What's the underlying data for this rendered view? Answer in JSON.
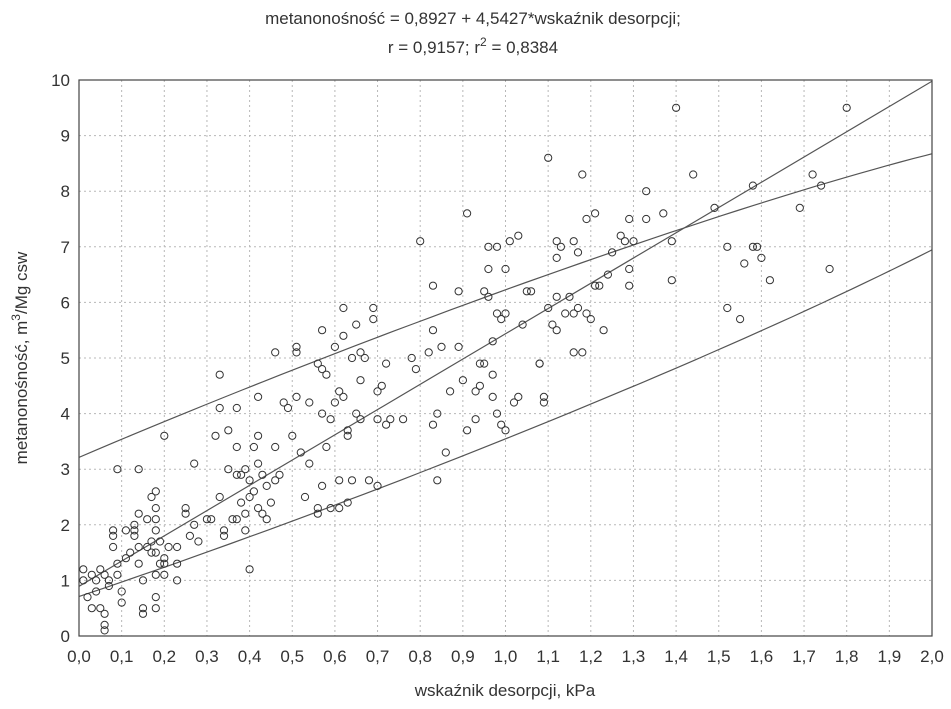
{
  "chart_data": {
    "type": "scatter",
    "title_line1": "metanonośność = 0,8927 + 4,5427*wskaźnik desorpcji;",
    "title_line2_prefix": "r = 0,9157; r",
    "title_line2_sup": "2",
    "title_line2_suffix": " = 0,8384",
    "xlabel": "wskaźnik desorpcji, kPa",
    "ylabel_prefix": "metanonośność, m",
    "ylabel_sup": "3",
    "ylabel_suffix": "/Mg csw",
    "xlim": [
      0,
      2
    ],
    "ylim": [
      0,
      10
    ],
    "x_ticks": [
      0,
      0.1,
      0.2,
      0.3,
      0.4,
      0.5,
      0.6,
      0.7,
      0.8,
      0.9,
      1.0,
      1.1,
      1.2,
      1.3,
      1.4,
      1.5,
      1.6,
      1.7,
      1.8,
      1.9,
      2.0
    ],
    "x_tick_labels": [
      "0,0",
      "0,1",
      "0,2",
      "0,3",
      "0,4",
      "0,5",
      "0,6",
      "0,7",
      "0,8",
      "0,9",
      "1,0",
      "1,1",
      "1,2",
      "1,3",
      "1,4",
      "1,5",
      "1,6",
      "1,7",
      "1,8",
      "1,9",
      "2,0"
    ],
    "y_ticks": [
      0,
      1,
      2,
      3,
      4,
      5,
      6,
      7,
      8,
      9,
      10
    ],
    "y_tick_labels": [
      "0",
      "1",
      "2",
      "3",
      "4",
      "5",
      "6",
      "7",
      "8",
      "9",
      "10"
    ],
    "grid": true,
    "regression": {
      "intercept": 0.8927,
      "slope": 4.5427
    },
    "confidence_ellipse": {
      "center": [
        0.68,
        3.95
      ],
      "angle_deg": 30.8,
      "semi_major": 1.98,
      "semi_minor": 0.235
    },
    "points": [
      [
        0.01,
        1.2
      ],
      [
        0.01,
        1.0
      ],
      [
        0.02,
        0.7
      ],
      [
        0.03,
        1.1
      ],
      [
        0.03,
        0.5
      ],
      [
        0.04,
        1.0
      ],
      [
        0.04,
        0.8
      ],
      [
        0.05,
        1.2
      ],
      [
        0.05,
        0.5
      ],
      [
        0.06,
        0.4
      ],
      [
        0.06,
        0.2
      ],
      [
        0.06,
        0.1
      ],
      [
        0.06,
        1.1
      ],
      [
        0.07,
        1.0
      ],
      [
        0.07,
        0.9
      ],
      [
        0.08,
        1.6
      ],
      [
        0.08,
        1.8
      ],
      [
        0.08,
        1.9
      ],
      [
        0.09,
        3.0
      ],
      [
        0.09,
        1.3
      ],
      [
        0.09,
        1.1
      ],
      [
        0.1,
        0.8
      ],
      [
        0.1,
        0.6
      ],
      [
        0.11,
        1.9
      ],
      [
        0.11,
        1.4
      ],
      [
        0.12,
        1.5
      ],
      [
        0.13,
        1.8
      ],
      [
        0.13,
        2.0
      ],
      [
        0.13,
        1.9
      ],
      [
        0.14,
        3.0
      ],
      [
        0.14,
        2.2
      ],
      [
        0.14,
        1.6
      ],
      [
        0.14,
        1.3
      ],
      [
        0.15,
        1.0
      ],
      [
        0.15,
        0.5
      ],
      [
        0.15,
        0.4
      ],
      [
        0.16,
        2.1
      ],
      [
        0.16,
        1.6
      ],
      [
        0.17,
        2.5
      ],
      [
        0.17,
        1.7
      ],
      [
        0.17,
        1.5
      ],
      [
        0.18,
        2.6
      ],
      [
        0.18,
        2.3
      ],
      [
        0.18,
        2.1
      ],
      [
        0.18,
        1.9
      ],
      [
        0.18,
        1.5
      ],
      [
        0.18,
        1.1
      ],
      [
        0.18,
        0.7
      ],
      [
        0.18,
        0.5
      ],
      [
        0.19,
        1.7
      ],
      [
        0.19,
        1.3
      ],
      [
        0.2,
        1.4
      ],
      [
        0.2,
        1.3
      ],
      [
        0.2,
        1.1
      ],
      [
        0.2,
        3.6
      ],
      [
        0.21,
        1.6
      ],
      [
        0.23,
        1.3
      ],
      [
        0.23,
        1.0
      ],
      [
        0.23,
        1.6
      ],
      [
        0.25,
        2.2
      ],
      [
        0.25,
        2.3
      ],
      [
        0.26,
        1.8
      ],
      [
        0.27,
        2.0
      ],
      [
        0.27,
        3.1
      ],
      [
        0.28,
        1.7
      ],
      [
        0.3,
        2.1
      ],
      [
        0.31,
        2.1
      ],
      [
        0.32,
        3.6
      ],
      [
        0.33,
        4.7
      ],
      [
        0.33,
        4.1
      ],
      [
        0.33,
        2.5
      ],
      [
        0.34,
        1.8
      ],
      [
        0.34,
        1.9
      ],
      [
        0.35,
        3.0
      ],
      [
        0.35,
        3.7
      ],
      [
        0.36,
        2.1
      ],
      [
        0.37,
        4.1
      ],
      [
        0.37,
        3.4
      ],
      [
        0.37,
        2.9
      ],
      [
        0.37,
        2.1
      ],
      [
        0.38,
        2.9
      ],
      [
        0.38,
        2.4
      ],
      [
        0.39,
        3.0
      ],
      [
        0.39,
        2.2
      ],
      [
        0.39,
        1.9
      ],
      [
        0.4,
        2.8
      ],
      [
        0.4,
        2.5
      ],
      [
        0.4,
        1.2
      ],
      [
        0.41,
        3.4
      ],
      [
        0.41,
        2.6
      ],
      [
        0.42,
        4.3
      ],
      [
        0.42,
        3.6
      ],
      [
        0.42,
        3.1
      ],
      [
        0.42,
        2.3
      ],
      [
        0.43,
        2.9
      ],
      [
        0.43,
        2.2
      ],
      [
        0.44,
        2.7
      ],
      [
        0.44,
        2.1
      ],
      [
        0.45,
        2.4
      ],
      [
        0.46,
        2.8
      ],
      [
        0.46,
        5.1
      ],
      [
        0.46,
        3.4
      ],
      [
        0.47,
        2.9
      ],
      [
        0.48,
        4.2
      ],
      [
        0.49,
        4.1
      ],
      [
        0.5,
        3.6
      ],
      [
        0.51,
        5.1
      ],
      [
        0.51,
        5.2
      ],
      [
        0.51,
        4.3
      ],
      [
        0.52,
        3.3
      ],
      [
        0.53,
        2.5
      ],
      [
        0.54,
        3.1
      ],
      [
        0.54,
        4.2
      ],
      [
        0.56,
        2.3
      ],
      [
        0.56,
        2.2
      ],
      [
        0.56,
        4.9
      ],
      [
        0.57,
        4.8
      ],
      [
        0.57,
        2.7
      ],
      [
        0.57,
        5.5
      ],
      [
        0.57,
        4.0
      ],
      [
        0.58,
        4.7
      ],
      [
        0.58,
        3.4
      ],
      [
        0.59,
        2.3
      ],
      [
        0.59,
        3.9
      ],
      [
        0.6,
        4.2
      ],
      [
        0.6,
        5.2
      ],
      [
        0.61,
        4.4
      ],
      [
        0.61,
        2.8
      ],
      [
        0.61,
        2.3
      ],
      [
        0.62,
        5.9
      ],
      [
        0.62,
        5.4
      ],
      [
        0.62,
        4.3
      ],
      [
        0.63,
        3.6
      ],
      [
        0.63,
        3.7
      ],
      [
        0.63,
        2.4
      ],
      [
        0.64,
        2.8
      ],
      [
        0.64,
        5.0
      ],
      [
        0.65,
        5.6
      ],
      [
        0.65,
        4.0
      ],
      [
        0.66,
        4.6
      ],
      [
        0.66,
        3.9
      ],
      [
        0.66,
        5.1
      ],
      [
        0.67,
        5.0
      ],
      [
        0.68,
        2.8
      ],
      [
        0.69,
        5.9
      ],
      [
        0.69,
        5.7
      ],
      [
        0.7,
        3.9
      ],
      [
        0.7,
        2.7
      ],
      [
        0.7,
        4.4
      ],
      [
        0.71,
        4.5
      ],
      [
        0.72,
        4.9
      ],
      [
        0.72,
        3.8
      ],
      [
        0.73,
        3.9
      ],
      [
        0.76,
        3.9
      ],
      [
        0.78,
        5.0
      ],
      [
        0.79,
        4.8
      ],
      [
        0.8,
        7.1
      ],
      [
        0.82,
        5.1
      ],
      [
        0.83,
        6.3
      ],
      [
        0.83,
        5.5
      ],
      [
        0.83,
        3.8
      ],
      [
        0.84,
        4.0
      ],
      [
        0.84,
        2.8
      ],
      [
        0.85,
        5.2
      ],
      [
        0.86,
        3.3
      ],
      [
        0.87,
        4.4
      ],
      [
        0.89,
        5.2
      ],
      [
        0.89,
        6.2
      ],
      [
        0.9,
        4.6
      ],
      [
        0.91,
        3.7
      ],
      [
        0.91,
        7.6
      ],
      [
        0.93,
        4.4
      ],
      [
        0.93,
        3.9
      ],
      [
        0.94,
        4.9
      ],
      [
        0.94,
        4.5
      ],
      [
        0.95,
        4.9
      ],
      [
        0.95,
        6.2
      ],
      [
        0.96,
        6.6
      ],
      [
        0.96,
        6.1
      ],
      [
        0.96,
        7.0
      ],
      [
        0.97,
        5.3
      ],
      [
        0.97,
        4.3
      ],
      [
        0.97,
        4.7
      ],
      [
        0.98,
        4.0
      ],
      [
        0.98,
        5.8
      ],
      [
        0.98,
        7.0
      ],
      [
        0.99,
        5.7
      ],
      [
        0.99,
        3.8
      ],
      [
        1.0,
        3.7
      ],
      [
        1.0,
        5.8
      ],
      [
        1.0,
        6.6
      ],
      [
        1.01,
        7.1
      ],
      [
        1.02,
        4.2
      ],
      [
        1.03,
        7.2
      ],
      [
        1.03,
        4.3
      ],
      [
        1.04,
        5.6
      ],
      [
        1.05,
        6.2
      ],
      [
        1.06,
        6.2
      ],
      [
        1.08,
        4.9
      ],
      [
        1.08,
        4.9
      ],
      [
        1.09,
        4.3
      ],
      [
        1.09,
        4.2
      ],
      [
        1.1,
        8.6
      ],
      [
        1.1,
        5.9
      ],
      [
        1.11,
        5.6
      ],
      [
        1.12,
        5.5
      ],
      [
        1.12,
        6.1
      ],
      [
        1.12,
        6.8
      ],
      [
        1.12,
        7.1
      ],
      [
        1.13,
        7.0
      ],
      [
        1.14,
        5.8
      ],
      [
        1.15,
        6.1
      ],
      [
        1.16,
        5.1
      ],
      [
        1.16,
        7.1
      ],
      [
        1.16,
        5.8
      ],
      [
        1.17,
        6.9
      ],
      [
        1.17,
        5.9
      ],
      [
        1.18,
        8.3
      ],
      [
        1.18,
        5.1
      ],
      [
        1.19,
        5.8
      ],
      [
        1.19,
        7.5
      ],
      [
        1.2,
        5.7
      ],
      [
        1.21,
        7.6
      ],
      [
        1.21,
        6.3
      ],
      [
        1.22,
        6.3
      ],
      [
        1.23,
        5.5
      ],
      [
        1.24,
        6.5
      ],
      [
        1.25,
        6.9
      ],
      [
        1.27,
        7.2
      ],
      [
        1.28,
        7.1
      ],
      [
        1.29,
        6.6
      ],
      [
        1.29,
        6.3
      ],
      [
        1.29,
        7.5
      ],
      [
        1.3,
        7.1
      ],
      [
        1.33,
        8.0
      ],
      [
        1.33,
        7.5
      ],
      [
        1.37,
        7.6
      ],
      [
        1.39,
        7.1
      ],
      [
        1.39,
        6.4
      ],
      [
        1.4,
        9.5
      ],
      [
        1.44,
        8.3
      ],
      [
        1.49,
        7.7
      ],
      [
        1.52,
        7.0
      ],
      [
        1.52,
        5.9
      ],
      [
        1.55,
        5.7
      ],
      [
        1.56,
        6.7
      ],
      [
        1.58,
        8.1
      ],
      [
        1.58,
        7.0
      ],
      [
        1.59,
        7.0
      ],
      [
        1.6,
        6.8
      ],
      [
        1.62,
        6.4
      ],
      [
        1.69,
        7.7
      ],
      [
        1.72,
        8.3
      ],
      [
        1.74,
        8.1
      ],
      [
        1.76,
        6.6
      ],
      [
        1.8,
        9.5
      ]
    ]
  }
}
